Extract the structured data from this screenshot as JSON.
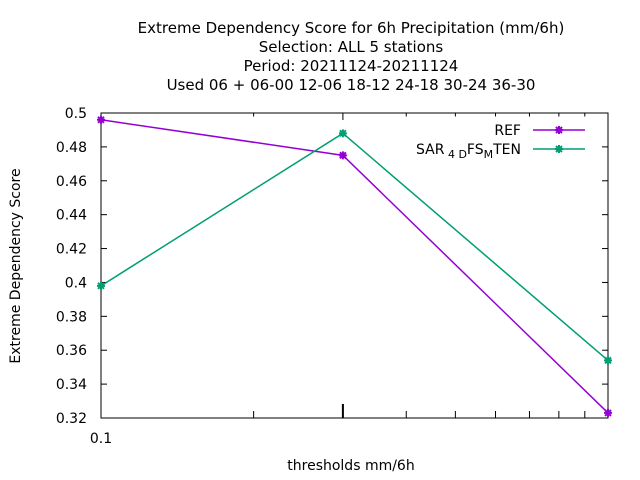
{
  "chart_data": {
    "type": "line",
    "title_lines": [
      "Extreme Dependency Score  for 6h Precipitation (mm/6h)",
      "Selection: ALL      5 stations",
      "Period: 20211124-20211124",
      "Used  06  + 06-00 12-06 18-12 24-18 30-24 36-30"
    ],
    "xlabel": "thresholds mm/6h",
    "ylabel": "Extreme Dependency Score",
    "x_scale": "log",
    "xlim": [
      0.1,
      1.0
    ],
    "ylim": [
      0.32,
      0.5
    ],
    "y_ticks": [
      "0.32",
      "0.34",
      "0.36",
      "0.38",
      "0.4",
      "0.42",
      "0.44",
      "0.46",
      "0.48",
      "0.5"
    ],
    "x_tick_labels": [
      "0.1"
    ],
    "x": [
      0.1,
      0.3,
      1.0
    ],
    "series": [
      {
        "name": "REF",
        "color": "#9400d3",
        "values": [
          0.496,
          0.475,
          0.323
        ]
      },
      {
        "name": "SAR4DFSMTEN",
        "name_parts": [
          "SAR",
          "4 D",
          "FS",
          "M",
          "TEN"
        ],
        "color": "#009e73",
        "values": [
          0.398,
          0.488,
          0.354
        ]
      }
    ],
    "legend_position": "top-right",
    "grid": false
  }
}
